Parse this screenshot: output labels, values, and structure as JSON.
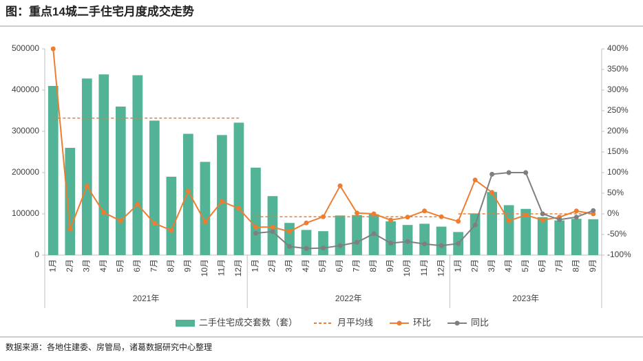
{
  "chart_data": {
    "type": "bar-line",
    "title": "图：重点14城二手住宅月度成交走势",
    "source": "数据来源：各地住建委、房管局，诸葛数据研究中心整理",
    "groups": [
      {
        "label": "2021年",
        "categories": [
          "1月",
          "2月",
          "3月",
          "4月",
          "5月",
          "6月",
          "7月",
          "8月",
          "9月",
          "10月",
          "11月",
          "12月"
        ]
      },
      {
        "label": "2022年",
        "categories": [
          "1月",
          "2月",
          "3月",
          "4月",
          "5月",
          "6月",
          "7月",
          "8月",
          "9月",
          "10月",
          "11月",
          "12月"
        ]
      },
      {
        "label": "2023年",
        "categories": [
          "1月",
          "2月",
          "3月",
          "4月",
          "5月",
          "6月",
          "7月",
          "8月",
          "9月"
        ]
      }
    ],
    "ylim": [
      0,
      500000
    ],
    "yticks": [
      0,
      100000,
      200000,
      300000,
      400000,
      500000
    ],
    "y2lim": [
      -100,
      400
    ],
    "y2ticks": [
      {
        "value": -100,
        "label": "-100%"
      },
      {
        "value": -50,
        "label": "-50%"
      },
      {
        "value": 0,
        "label": "0%"
      },
      {
        "value": 50,
        "label": "50%"
      },
      {
        "value": 100,
        "label": "100%"
      },
      {
        "value": 150,
        "label": "150%"
      },
      {
        "value": 200,
        "label": "200%"
      },
      {
        "value": 250,
        "label": "250%"
      },
      {
        "value": 300,
        "label": "300%"
      },
      {
        "value": 350,
        "label": "350%"
      },
      {
        "value": 400,
        "label": "400%"
      }
    ],
    "series": [
      {
        "name": "二手住宅成交套数（套）",
        "type": "bar",
        "color": "#52b396",
        "values": [
          410000,
          260000,
          428000,
          438000,
          360000,
          436000,
          326000,
          190000,
          294000,
          226000,
          291000,
          321000,
          212000,
          143000,
          78000,
          61000,
          58000,
          96000,
          97000,
          99000,
          82000,
          73000,
          76000,
          69000,
          56000,
          101000,
          153000,
          121000,
          112000,
          92000,
          84000,
          88000,
          87000
        ]
      },
      {
        "name": "月平均线",
        "type": "line",
        "style": "dashed",
        "color": "#ed7d31",
        "values": [
          332000,
          332000,
          332000,
          332000,
          332000,
          332000,
          332000,
          332000,
          332000,
          332000,
          332000,
          332000,
          93000,
          93000,
          93000,
          93000,
          93000,
          93000,
          93000,
          93000,
          93000,
          93000,
          93000,
          93000,
          100000,
          100000,
          100000,
          100000,
          100000,
          100000,
          100000,
          100000,
          100000
        ]
      },
      {
        "name": "环比",
        "type": "line",
        "axis": "y2",
        "markers": true,
        "color": "#ed7d31",
        "values": [
          400,
          -37,
          67,
          3,
          -17,
          23,
          -23,
          -40,
          55,
          -20,
          30,
          13,
          -32,
          -32,
          -43,
          -22,
          -7,
          68,
          2,
          0,
          -15,
          -8,
          7,
          -7,
          -18,
          82,
          52,
          -17,
          -3,
          -15,
          -8,
          7,
          0
        ]
      },
      {
        "name": "同比",
        "type": "line",
        "axis": "y2",
        "markers": true,
        "color": "#7f7f7f",
        "values": [
          null,
          null,
          null,
          null,
          null,
          null,
          null,
          null,
          null,
          null,
          null,
          null,
          -47,
          -43,
          -79,
          -84,
          -83,
          -77,
          -69,
          -48,
          -71,
          -67,
          -73,
          -77,
          -72,
          -27,
          96,
          100,
          100,
          0,
          -14,
          -8,
          8
        ]
      }
    ]
  }
}
